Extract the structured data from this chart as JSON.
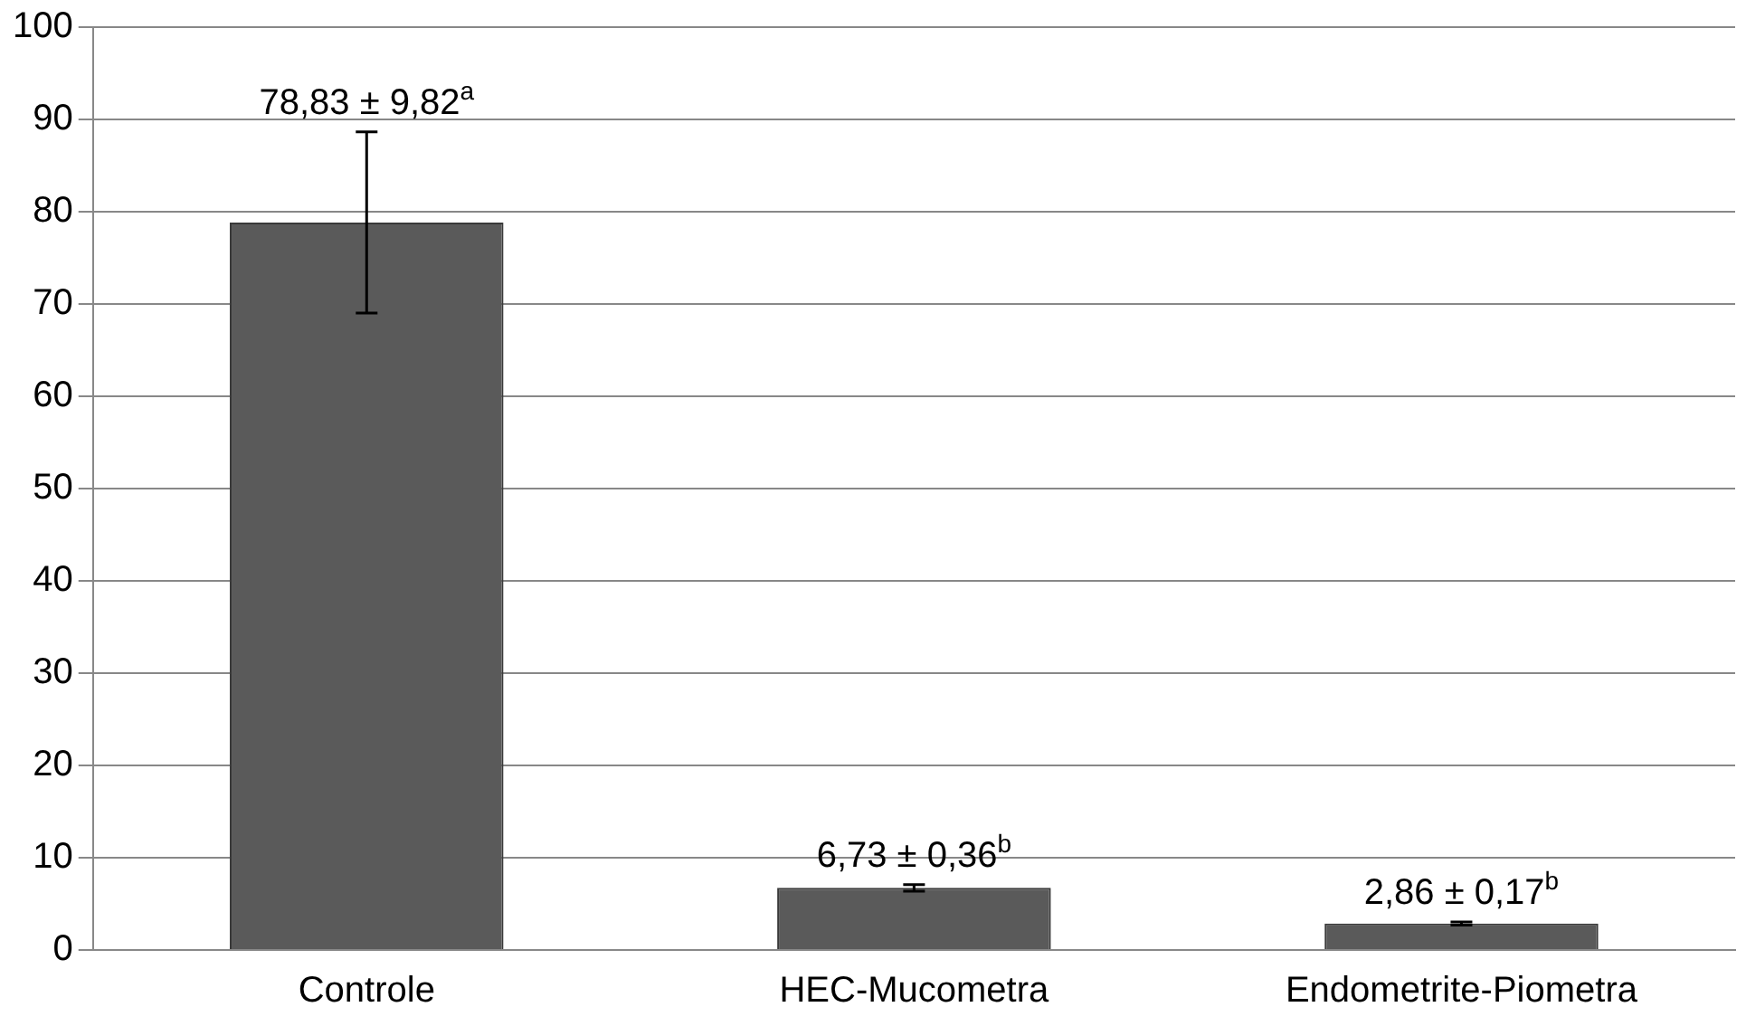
{
  "chart_data": {
    "type": "bar",
    "categories": [
      "Controle",
      "HEC-Mucometra",
      "Endometrite-Piometra"
    ],
    "values": [
      78.83,
      6.73,
      2.86
    ],
    "errors": [
      9.82,
      0.36,
      0.17
    ],
    "value_labels": [
      "78,83 ± 9,82$^{a}$",
      "6,73 ± 0,36$^{b}$",
      "2,86 ± 0,17$^{b}$"
    ],
    "color": "#5a5a5a",
    "ylim": [
      0,
      100
    ],
    "yticks": [
      0,
      10,
      20,
      30,
      40,
      50,
      60,
      70,
      80,
      90,
      100
    ],
    "grid": "y",
    "legend": false
  }
}
